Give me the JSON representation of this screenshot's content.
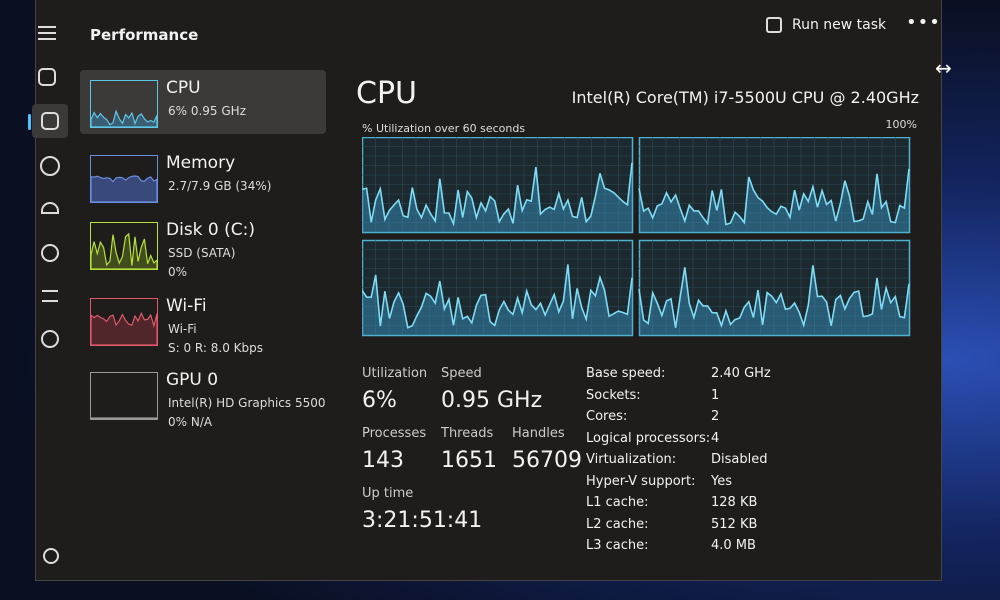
{
  "header": {
    "title": "Performance",
    "run_task": "Run new task"
  },
  "sidebar": [
    {
      "name": "CPU",
      "lines": [
        "6% 0.95 GHz"
      ]
    },
    {
      "name": "Memory",
      "lines": [
        "2.7/7.9 GB (34%)"
      ]
    },
    {
      "name": "Disk 0 (C:)",
      "lines": [
        "SSD (SATA)",
        "0%"
      ]
    },
    {
      "name": "Wi-Fi",
      "lines": [
        "Wi-Fi",
        "S: 0 R: 8.0 Kbps"
      ]
    },
    {
      "name": "GPU 0",
      "lines": [
        "Intel(R) HD Graphics 5500",
        "0% N/A"
      ]
    }
  ],
  "main": {
    "title": "CPU",
    "model": "Intel(R) Core(TM) i7-5500U CPU @ 2.40GHz",
    "graph_label": "% Utilization over 60 seconds",
    "graph_max": "100%"
  },
  "stats": [
    {
      "label": "Utilization",
      "value": "6%"
    },
    {
      "label": "Speed",
      "value": "0.95 GHz"
    },
    {
      "label": "Processes",
      "value": "143"
    },
    {
      "label": "Threads",
      "value": "1651"
    },
    {
      "label": "Handles",
      "value": "56709"
    },
    {
      "label": "Up time",
      "value": "3:21:51:41"
    }
  ],
  "details": [
    [
      "Base speed:",
      "2.40 GHz"
    ],
    [
      "Sockets:",
      "1"
    ],
    [
      "Cores:",
      "2"
    ],
    [
      "Logical processors:",
      "4"
    ],
    [
      "Virtualization:",
      "Disabled"
    ],
    [
      "Hyper-V support:",
      "Yes"
    ],
    [
      "L1 cache:",
      "128 KB"
    ],
    [
      "L2 cache:",
      "512 KB"
    ],
    [
      "L3 cache:",
      "4.0 MB"
    ]
  ]
}
